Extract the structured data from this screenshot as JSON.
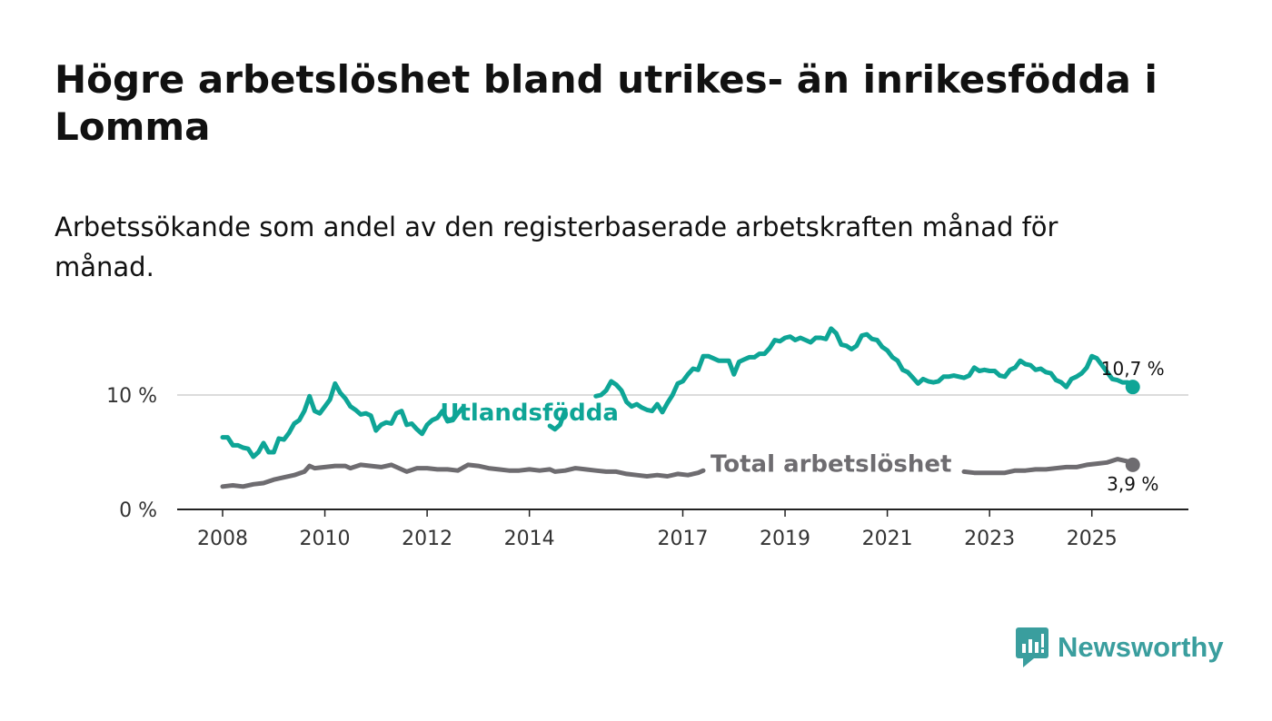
{
  "title": "Högre arbetslöshet bland utrikes- än inrikesfödda i Lomma",
  "subtitle": "Arbetssökande som andel av den registerbaserade arbetskraften månad för månad.",
  "brand": {
    "name": "Newsworthy",
    "icon": "newsworthy-bar-chart-icon",
    "color": "#3a9e9e"
  },
  "colors": {
    "foreign": "#0ea596",
    "total": "#6e6c70",
    "grid": "#dcdcdc",
    "axis": "#222222"
  },
  "chart_data": {
    "type": "line",
    "title": "Högre arbetslöshet bland utrikes- än inrikesfödda i Lomma",
    "xlabel": "",
    "ylabel": "",
    "xlim": [
      2008.0,
      2026.0
    ],
    "ylim": [
      0,
      15
    ],
    "grid": true,
    "y_ticks": [
      {
        "value": 0,
        "label": "0 %"
      },
      {
        "value": 10,
        "label": "10 %"
      }
    ],
    "x_ticks": [
      {
        "value": 2008,
        "label": "2008"
      },
      {
        "value": 2010,
        "label": "2010"
      },
      {
        "value": 2012,
        "label": "2012"
      },
      {
        "value": 2014,
        "label": "2014"
      },
      {
        "value": 2017,
        "label": "2017"
      },
      {
        "value": 2019,
        "label": "2019"
      },
      {
        "value": 2021,
        "label": "2021"
      },
      {
        "value": 2023,
        "label": "2023"
      },
      {
        "value": 2025,
        "label": "2025"
      }
    ],
    "series": [
      {
        "name": "Utlandsfödda",
        "color": "#0ea596",
        "end_label": "10,7 %",
        "points": [
          [
            2008.0,
            6.3
          ],
          [
            2008.1,
            6.3
          ],
          [
            2008.2,
            5.6
          ],
          [
            2008.3,
            5.6
          ],
          [
            2008.4,
            5.4
          ],
          [
            2008.5,
            5.3
          ],
          [
            2008.6,
            4.6
          ],
          [
            2008.7,
            5.0
          ],
          [
            2008.8,
            5.8
          ],
          [
            2008.9,
            5.0
          ],
          [
            2009.0,
            5.0
          ],
          [
            2009.1,
            6.2
          ],
          [
            2009.2,
            6.1
          ],
          [
            2009.3,
            6.7
          ],
          [
            2009.4,
            7.5
          ],
          [
            2009.5,
            7.8
          ],
          [
            2009.6,
            8.6
          ],
          [
            2009.7,
            9.9
          ],
          [
            2009.8,
            8.6
          ],
          [
            2009.9,
            8.4
          ],
          [
            2010.0,
            9.0
          ],
          [
            2010.1,
            9.6
          ],
          [
            2010.2,
            11.0
          ],
          [
            2010.3,
            10.2
          ],
          [
            2010.4,
            9.7
          ],
          [
            2010.5,
            9.0
          ],
          [
            2010.6,
            8.7
          ],
          [
            2010.7,
            8.3
          ],
          [
            2010.8,
            8.4
          ],
          [
            2010.9,
            8.2
          ],
          [
            2011.0,
            6.9
          ],
          [
            2011.1,
            7.4
          ],
          [
            2011.2,
            7.6
          ],
          [
            2011.3,
            7.5
          ],
          [
            2011.4,
            8.4
          ],
          [
            2011.5,
            8.6
          ],
          [
            2011.6,
            7.4
          ],
          [
            2011.7,
            7.5
          ],
          [
            2011.8,
            7.0
          ],
          [
            2011.9,
            6.6
          ],
          [
            2012.0,
            7.4
          ],
          [
            2012.1,
            7.8
          ],
          [
            2012.2,
            8.0
          ],
          [
            2012.3,
            8.6
          ],
          [
            2012.4,
            7.7
          ],
          [
            2012.5,
            7.8
          ],
          [
            2012.6,
            8.4
          ],
          [
            2012.7,
            8.9
          ],
          [
            2014.4,
            7.3
          ],
          [
            2014.5,
            7.0
          ],
          [
            2014.6,
            7.4
          ],
          [
            2014.7,
            8.7
          ],
          [
            2015.3,
            9.9
          ],
          [
            2015.4,
            10.0
          ],
          [
            2015.5,
            10.4
          ],
          [
            2015.6,
            11.2
          ],
          [
            2015.7,
            10.9
          ],
          [
            2015.8,
            10.4
          ],
          [
            2015.9,
            9.4
          ],
          [
            2016.0,
            9.0
          ],
          [
            2016.1,
            9.2
          ],
          [
            2016.2,
            8.9
          ],
          [
            2016.3,
            8.7
          ],
          [
            2016.4,
            8.6
          ],
          [
            2016.5,
            9.2
          ],
          [
            2016.6,
            8.5
          ],
          [
            2016.7,
            9.3
          ],
          [
            2016.8,
            10.0
          ],
          [
            2016.9,
            11.0
          ],
          [
            2017.0,
            11.2
          ],
          [
            2017.1,
            11.8
          ],
          [
            2017.2,
            12.3
          ],
          [
            2017.3,
            12.2
          ],
          [
            2017.4,
            13.4
          ],
          [
            2017.5,
            13.4
          ],
          [
            2017.6,
            13.2
          ],
          [
            2017.7,
            13.0
          ],
          [
            2017.8,
            13.0
          ],
          [
            2017.9,
            13.0
          ],
          [
            2018.0,
            11.8
          ],
          [
            2018.1,
            12.9
          ],
          [
            2018.2,
            13.1
          ],
          [
            2018.3,
            13.3
          ],
          [
            2018.4,
            13.3
          ],
          [
            2018.5,
            13.6
          ],
          [
            2018.6,
            13.6
          ],
          [
            2018.7,
            14.1
          ],
          [
            2018.8,
            14.8
          ],
          [
            2018.9,
            14.7
          ],
          [
            2019.0,
            15.0
          ],
          [
            2019.1,
            15.1
          ],
          [
            2019.2,
            14.8
          ],
          [
            2019.3,
            15.0
          ],
          [
            2019.4,
            14.8
          ],
          [
            2019.5,
            14.6
          ],
          [
            2019.6,
            15.0
          ],
          [
            2019.7,
            15.0
          ],
          [
            2019.8,
            14.9
          ],
          [
            2019.9,
            15.8
          ],
          [
            2020.0,
            15.4
          ],
          [
            2020.1,
            14.4
          ],
          [
            2020.2,
            14.3
          ],
          [
            2020.3,
            14.0
          ],
          [
            2020.4,
            14.3
          ],
          [
            2020.5,
            15.2
          ],
          [
            2020.6,
            15.3
          ],
          [
            2020.7,
            14.9
          ],
          [
            2020.8,
            14.8
          ],
          [
            2020.9,
            14.2
          ],
          [
            2021.0,
            13.9
          ],
          [
            2021.1,
            13.3
          ],
          [
            2021.2,
            13.0
          ],
          [
            2021.3,
            12.2
          ],
          [
            2021.4,
            12.0
          ],
          [
            2021.5,
            11.5
          ],
          [
            2021.6,
            11.0
          ],
          [
            2021.7,
            11.4
          ],
          [
            2021.8,
            11.2
          ],
          [
            2021.9,
            11.1
          ],
          [
            2022.0,
            11.2
          ],
          [
            2022.1,
            11.6
          ],
          [
            2022.2,
            11.6
          ],
          [
            2022.3,
            11.7
          ],
          [
            2022.4,
            11.6
          ],
          [
            2022.5,
            11.5
          ],
          [
            2022.6,
            11.7
          ],
          [
            2022.7,
            12.4
          ],
          [
            2022.8,
            12.1
          ],
          [
            2022.9,
            12.2
          ],
          [
            2023.0,
            12.1
          ],
          [
            2023.1,
            12.1
          ],
          [
            2023.2,
            11.7
          ],
          [
            2023.3,
            11.6
          ],
          [
            2023.4,
            12.2
          ],
          [
            2023.5,
            12.4
          ],
          [
            2023.6,
            13.0
          ],
          [
            2023.7,
            12.7
          ],
          [
            2023.8,
            12.6
          ],
          [
            2023.9,
            12.2
          ],
          [
            2024.0,
            12.3
          ],
          [
            2024.1,
            12.0
          ],
          [
            2024.2,
            11.9
          ],
          [
            2024.3,
            11.3
          ],
          [
            2024.4,
            11.1
          ],
          [
            2024.5,
            10.7
          ],
          [
            2024.6,
            11.4
          ],
          [
            2024.7,
            11.6
          ],
          [
            2024.8,
            11.9
          ],
          [
            2024.9,
            12.4
          ],
          [
            2025.0,
            13.4
          ],
          [
            2025.1,
            13.2
          ],
          [
            2025.4,
            11.4
          ],
          [
            2025.5,
            11.3
          ],
          [
            2025.6,
            11.1
          ],
          [
            2025.7,
            11.1
          ],
          [
            2025.8,
            10.7
          ]
        ]
      },
      {
        "name": "Total arbetslöshet",
        "color": "#6e6c70",
        "end_label": "3,9 %",
        "points": [
          [
            2008.0,
            2.0
          ],
          [
            2008.2,
            2.1
          ],
          [
            2008.4,
            2.0
          ],
          [
            2008.6,
            2.2
          ],
          [
            2008.8,
            2.3
          ],
          [
            2009.0,
            2.6
          ],
          [
            2009.2,
            2.8
          ],
          [
            2009.4,
            3.0
          ],
          [
            2009.6,
            3.3
          ],
          [
            2009.7,
            3.8
          ],
          [
            2009.8,
            3.6
          ],
          [
            2010.0,
            3.7
          ],
          [
            2010.2,
            3.8
          ],
          [
            2010.4,
            3.8
          ],
          [
            2010.5,
            3.6
          ],
          [
            2010.7,
            3.9
          ],
          [
            2010.9,
            3.8
          ],
          [
            2011.1,
            3.7
          ],
          [
            2011.3,
            3.9
          ],
          [
            2011.5,
            3.5
          ],
          [
            2011.6,
            3.3
          ],
          [
            2011.8,
            3.6
          ],
          [
            2012.0,
            3.6
          ],
          [
            2012.2,
            3.5
          ],
          [
            2012.4,
            3.5
          ],
          [
            2012.6,
            3.4
          ],
          [
            2012.8,
            3.9
          ],
          [
            2013.0,
            3.8
          ],
          [
            2013.2,
            3.6
          ],
          [
            2013.4,
            3.5
          ],
          [
            2013.6,
            3.4
          ],
          [
            2013.8,
            3.4
          ],
          [
            2014.0,
            3.5
          ],
          [
            2014.2,
            3.4
          ],
          [
            2014.4,
            3.5
          ],
          [
            2014.5,
            3.3
          ],
          [
            2014.7,
            3.4
          ],
          [
            2014.9,
            3.6
          ],
          [
            2015.1,
            3.5
          ],
          [
            2015.3,
            3.4
          ],
          [
            2015.5,
            3.3
          ],
          [
            2015.7,
            3.3
          ],
          [
            2015.9,
            3.1
          ],
          [
            2016.1,
            3.0
          ],
          [
            2016.3,
            2.9
          ],
          [
            2016.5,
            3.0
          ],
          [
            2016.7,
            2.9
          ],
          [
            2016.9,
            3.1
          ],
          [
            2017.1,
            3.0
          ],
          [
            2017.3,
            3.2
          ],
          [
            2017.4,
            3.4
          ],
          [
            2022.5,
            3.3
          ],
          [
            2022.7,
            3.2
          ],
          [
            2022.9,
            3.2
          ],
          [
            2023.1,
            3.2
          ],
          [
            2023.3,
            3.2
          ],
          [
            2023.5,
            3.4
          ],
          [
            2023.7,
            3.4
          ],
          [
            2023.9,
            3.5
          ],
          [
            2024.1,
            3.5
          ],
          [
            2024.3,
            3.6
          ],
          [
            2024.5,
            3.7
          ],
          [
            2024.7,
            3.7
          ],
          [
            2024.9,
            3.9
          ],
          [
            2025.1,
            4.0
          ],
          [
            2025.3,
            4.1
          ],
          [
            2025.5,
            4.4
          ],
          [
            2025.7,
            4.2
          ],
          [
            2025.8,
            3.9
          ]
        ]
      }
    ],
    "annotations": [
      {
        "text": "Utlandsfödda",
        "series": "Utlandsfödda",
        "x": 2014.0,
        "y": 8.5
      },
      {
        "text": "Total arbetslöshet",
        "series": "Total arbetslöshet",
        "x": 2019.9,
        "y": 4.0
      }
    ]
  }
}
